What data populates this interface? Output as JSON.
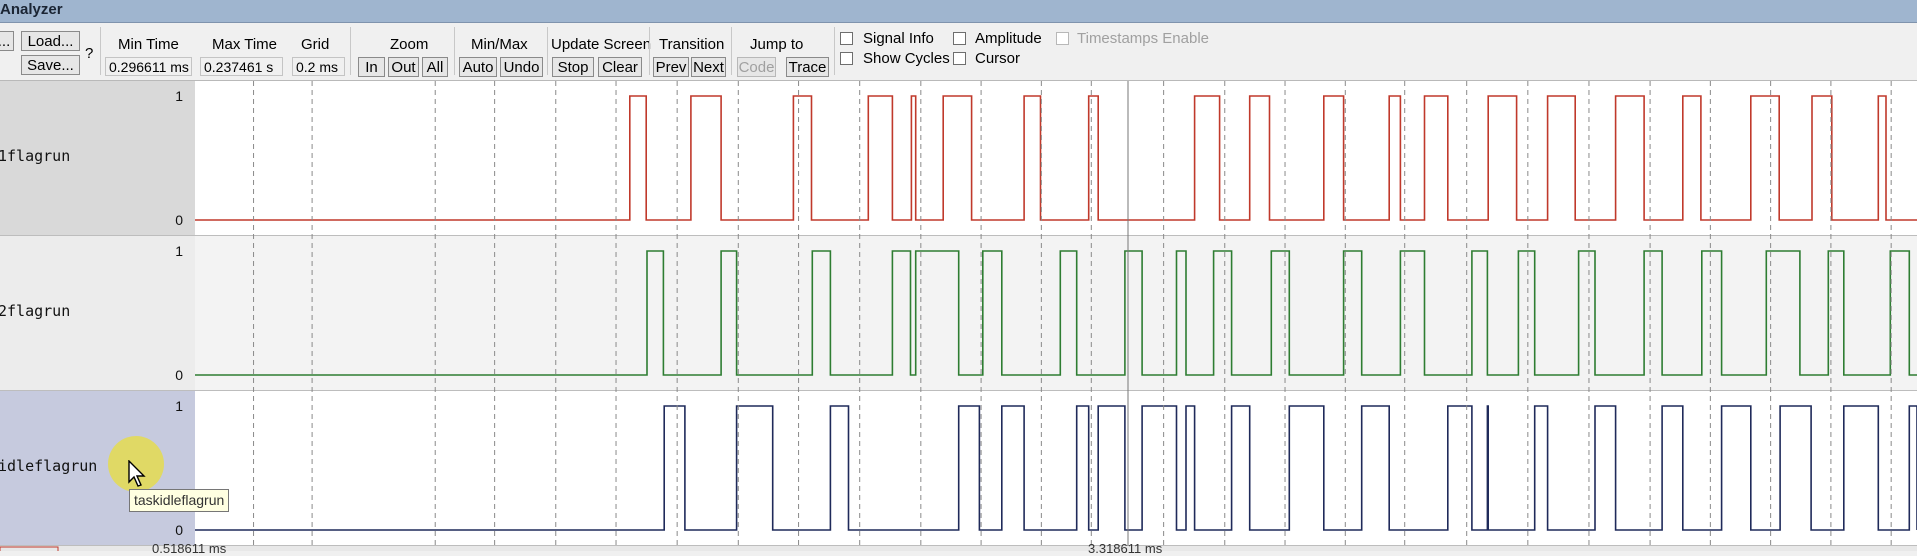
{
  "window": {
    "title": "Analyzer"
  },
  "toolbar": {
    "setup_label": "...",
    "load_label": "Load...",
    "save_label": "Save...",
    "help_label": "?",
    "min_time": {
      "label": "Min Time",
      "value": "0.296611 ms"
    },
    "max_time": {
      "label": "Max Time",
      "value": "0.237461 s"
    },
    "grid": {
      "label": "Grid",
      "value": "0.2 ms"
    },
    "zoom": {
      "label": "Zoom",
      "in": "In",
      "out": "Out",
      "all": "All"
    },
    "minmax": {
      "label": "Min/Max",
      "auto": "Auto",
      "undo": "Undo"
    },
    "update_screen": {
      "label": "Update Screen",
      "stop": "Stop",
      "clear": "Clear"
    },
    "transition": {
      "label": "Transition",
      "prev": "Prev",
      "next": "Next"
    },
    "jump_to": {
      "label": "Jump to",
      "code": "Code",
      "trace": "Trace"
    },
    "signal_info": {
      "label": "Signal Info",
      "checked": false
    },
    "show_cycles": {
      "label": "Show Cycles",
      "checked": false
    },
    "amplitude": {
      "label": "Amplitude",
      "checked": false
    },
    "cursor": {
      "label": "Cursor",
      "checked": false
    },
    "timestamps_enable": {
      "label": "Timestamps Enable",
      "checked": false,
      "enabled": false
    }
  },
  "signals": [
    {
      "name": "1flagrun",
      "color": "#c0392b",
      "label_bg": "#d9d9d9",
      "row_bg": "#ffffff",
      "max_label": "1",
      "min_label": "0",
      "high_intervals": [
        [
          0.2525,
          0.262
        ],
        [
          0.288,
          0.3055
        ],
        [
          0.3475,
          0.358
        ],
        [
          0.391,
          0.405
        ],
        [
          0.416,
          0.4185
        ],
        [
          0.4345,
          0.451
        ],
        [
          0.4815,
          0.491
        ],
        [
          0.519,
          0.5245
        ],
        [
          0.5805,
          0.595
        ],
        [
          0.6125,
          0.624
        ],
        [
          0.6555,
          0.667
        ],
        [
          0.6935,
          0.7
        ],
        [
          0.714,
          0.7275
        ],
        [
          0.751,
          0.7675
        ],
        [
          0.7855,
          0.8015
        ],
        [
          0.825,
          0.8415
        ],
        [
          0.864,
          0.8745
        ],
        [
          0.9035,
          0.92
        ],
        [
          0.939,
          0.9505
        ],
        [
          0.9775,
          0.982
        ]
      ]
    },
    {
      "name": "2flagrun",
      "color": "#2e7d32",
      "label_bg": "#ececec",
      "row_bg": "#f3f3f3",
      "max_label": "1",
      "min_label": "0",
      "high_intervals": [
        [
          0.2625,
          0.272
        ],
        [
          0.3055,
          0.3145
        ],
        [
          0.3585,
          0.369
        ],
        [
          0.405,
          0.4155
        ],
        [
          0.4185,
          0.4435
        ],
        [
          0.4575,
          0.4685
        ],
        [
          0.5025,
          0.512
        ],
        [
          0.54,
          0.55
        ],
        [
          0.57,
          0.5755
        ],
        [
          0.5915,
          0.602
        ],
        [
          0.625,
          0.6355
        ],
        [
          0.667,
          0.6775
        ],
        [
          0.7,
          0.714
        ],
        [
          0.7415,
          0.7505
        ],
        [
          0.7685,
          0.778
        ],
        [
          0.8035,
          0.813
        ],
        [
          0.8415,
          0.852
        ],
        [
          0.875,
          0.8865
        ],
        [
          0.9125,
          0.932
        ],
        [
          0.9485,
          0.9575
        ],
        [
          0.9845,
          0.9955
        ]
      ]
    },
    {
      "name": "idleflagrun",
      "color": "#1f2a5a",
      "label_bg": "#c6cade",
      "row_bg": "#ffffff",
      "max_label": "1",
      "min_label": "0",
      "high_intervals": [
        [
          0.2725,
          0.2845
        ],
        [
          0.3145,
          0.3355
        ],
        [
          0.369,
          0.3795
        ],
        [
          0.4435,
          0.4555
        ],
        [
          0.4685,
          0.4815
        ],
        [
          0.512,
          0.519
        ],
        [
          0.5245,
          0.54
        ],
        [
          0.55,
          0.57
        ],
        [
          0.5755,
          0.5805
        ],
        [
          0.602,
          0.6125
        ],
        [
          0.6355,
          0.6555
        ],
        [
          0.6775,
          0.6935
        ],
        [
          0.7275,
          0.7415
        ],
        [
          0.7505,
          0.751
        ],
        [
          0.778,
          0.7855
        ],
        [
          0.813,
          0.825
        ],
        [
          0.852,
          0.864
        ],
        [
          0.8865,
          0.9035
        ],
        [
          0.9205,
          0.9385
        ],
        [
          0.9575,
          0.9775
        ],
        [
          0.9955,
          1.0
        ]
      ]
    }
  ],
  "grid_lines": [
    0.034,
    0.068,
    0.1395,
    0.174,
    0.2095,
    0.2445,
    0.28,
    0.3155,
    0.3505,
    0.386,
    0.4215,
    0.4565,
    0.4915,
    0.5205,
    0.5625,
    0.598,
    0.633,
    0.668,
    0.7025,
    0.7385,
    0.774,
    0.8095,
    0.845,
    0.88,
    0.915,
    0.95,
    0.985
  ],
  "time_ruler": {
    "left": "0.518611 ms",
    "right": "3.318611 ms"
  },
  "tooltip": {
    "text": "taskidleflagrun"
  },
  "colors": {
    "titlebar": "#9fb5cf",
    "grid": "#8a8a8a"
  }
}
